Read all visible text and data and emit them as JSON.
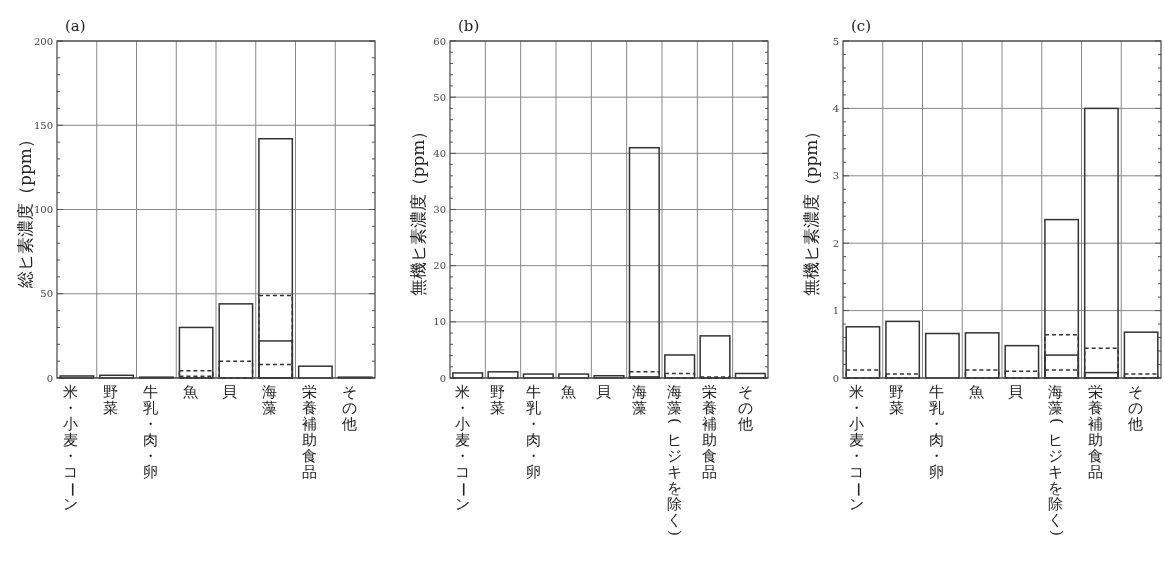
{
  "chart_data": [
    {
      "type": "bar",
      "title": "(a)",
      "ylabel": "総ヒ素濃度（ppm）",
      "categories": [
        "米・小麦・コーン",
        "野菜",
        "牛乳・肉・卵",
        "魚",
        "貝",
        "海藻",
        "栄養補助食品",
        "その他"
      ],
      "ylim": [
        0,
        200
      ],
      "yticks": [
        0,
        {
          "value": 10,
          "label": null
        },
        {
          "value": 20,
          "label": null
        },
        {
          "value": 30,
          "label": null
        },
        {
          "value": 40,
          "label": null
        },
        50,
        {
          "value": 60,
          "label": null
        },
        {
          "value": 70,
          "label": null
        },
        {
          "value": 80,
          "label": null
        },
        {
          "value": 90,
          "label": null
        },
        100,
        {
          "value": 110,
          "label": null
        },
        {
          "value": 120,
          "label": null
        },
        {
          "value": 130,
          "label": null
        },
        {
          "value": 140,
          "label": null
        },
        150,
        {
          "value": 160,
          "label": null
        },
        {
          "value": 170,
          "label": null
        },
        {
          "value": 180,
          "label": null
        },
        {
          "value": 190,
          "label": null
        },
        200
      ],
      "grid": true,
      "series": [
        {
          "color": "#333333",
          "line_style": "solid",
          "values": [
            1.2,
            1.6,
            0.5,
            30,
            44,
            142,
            7,
            0.5
          ]
        },
        {
          "color": "#333333",
          "line_style": "dashed",
          "values": [
            null,
            null,
            null,
            4.3,
            10,
            49,
            null,
            null
          ]
        },
        {
          "color": "#333333",
          "line_style": "solid",
          "values": [
            null,
            null,
            null,
            null,
            null,
            22,
            null,
            null
          ]
        },
        {
          "color": "#333333",
          "line_style": "dashed",
          "values": [
            null,
            null,
            null,
            1,
            null,
            8,
            null,
            null
          ]
        }
      ]
    },
    {
      "type": "bar",
      "title": "(b)",
      "ylabel": "無機ヒ素濃度（ppm）",
      "categories": [
        "米・小麦・コーン",
        "野菜",
        "牛乳・肉・卵",
        "魚",
        "貝",
        "海藻",
        "海藻(ヒジキを除く)",
        "栄養補助食品",
        "その他"
      ],
      "ylim": [
        0,
        60
      ],
      "yticks": [
        0,
        {
          "value": 2,
          "label": null
        },
        {
          "value": 4,
          "label": null
        },
        {
          "value": 6,
          "label": null
        },
        {
          "value": 8,
          "label": null
        },
        10,
        {
          "value": 12,
          "label": null
        },
        {
          "value": 14,
          "label": null
        },
        {
          "value": 16,
          "label": null
        },
        {
          "value": 18,
          "label": null
        },
        20,
        {
          "value": 22,
          "label": null
        },
        {
          "value": 24,
          "label": null
        },
        {
          "value": 26,
          "label": null
        },
        {
          "value": 28,
          "label": null
        },
        30,
        {
          "value": 32,
          "label": null
        },
        {
          "value": 34,
          "label": null
        },
        {
          "value": 36,
          "label": null
        },
        {
          "value": 38,
          "label": null
        },
        40,
        {
          "value": 42,
          "label": null
        },
        {
          "value": 44,
          "label": null
        },
        {
          "value": 46,
          "label": null
        },
        {
          "value": 48,
          "label": null
        },
        50,
        {
          "value": 52,
          "label": null
        },
        {
          "value": 54,
          "label": null
        },
        {
          "value": 56,
          "label": null
        },
        {
          "value": 58,
          "label": null
        },
        60
      ],
      "grid": true,
      "series": [
        {
          "color": "#333333",
          "line_style": "solid",
          "values": [
            0.9,
            1.1,
            0.7,
            0.7,
            0.4,
            41,
            4.1,
            7.5,
            0.8
          ]
        },
        {
          "color": "#333333",
          "line_style": "dashed",
          "values": [
            null,
            null,
            null,
            null,
            null,
            1.1,
            0.8,
            0.2,
            null
          ]
        },
        {
          "color": "#333333",
          "line_style": "solid",
          "values": [
            null,
            null,
            null,
            null,
            null,
            0.2,
            null,
            null,
            null
          ]
        }
      ]
    },
    {
      "type": "bar",
      "title": "(c)",
      "ylabel": "無機ヒ素濃度（ppm）",
      "categories": [
        "米・小麦・コーン",
        "野菜",
        "牛乳・肉・卵",
        "魚",
        "貝",
        "海藻(ヒジキを除く)",
        "栄養補助食品",
        "その他"
      ],
      "ylim": [
        0,
        5
      ],
      "yticks": [
        0,
        {
          "value": 0.2,
          "label": null
        },
        {
          "value": 0.4,
          "label": null
        },
        {
          "value": 0.6,
          "label": null
        },
        {
          "value": 0.8,
          "label": null
        },
        1,
        {
          "value": 1.2,
          "label": null
        },
        {
          "value": 1.4,
          "label": null
        },
        {
          "value": 1.6,
          "label": null
        },
        {
          "value": 1.8,
          "label": null
        },
        2,
        {
          "value": 2.2,
          "label": null
        },
        {
          "value": 2.4,
          "label": null
        },
        {
          "value": 2.6,
          "label": null
        },
        {
          "value": 2.8,
          "label": null
        },
        3,
        {
          "value": 3.2,
          "label": null
        },
        {
          "value": 3.4,
          "label": null
        },
        {
          "value": 3.6,
          "label": null
        },
        {
          "value": 3.8,
          "label": null
        },
        4,
        {
          "value": 4.2,
          "label": null
        },
        {
          "value": 4.4,
          "label": null
        },
        {
          "value": 4.6,
          "label": null
        },
        {
          "value": 4.8,
          "label": null
        },
        5
      ],
      "grid": true,
      "series": [
        {
          "color": "#333333",
          "line_style": "solid",
          "values": [
            0.76,
            0.84,
            0.66,
            0.67,
            0.48,
            2.35,
            4.0,
            0.68
          ]
        },
        {
          "color": "#333333",
          "line_style": "dashed",
          "values": [
            0.12,
            0.06,
            null,
            0.12,
            0.1,
            0.64,
            0.44,
            0.06
          ]
        },
        {
          "color": "#333333",
          "line_style": "solid",
          "values": [
            null,
            null,
            null,
            null,
            null,
            0.34,
            0.08,
            null
          ]
        },
        {
          "color": "#333333",
          "line_style": "dashed",
          "values": [
            null,
            null,
            null,
            null,
            null,
            0.12,
            null,
            null
          ]
        }
      ]
    }
  ]
}
